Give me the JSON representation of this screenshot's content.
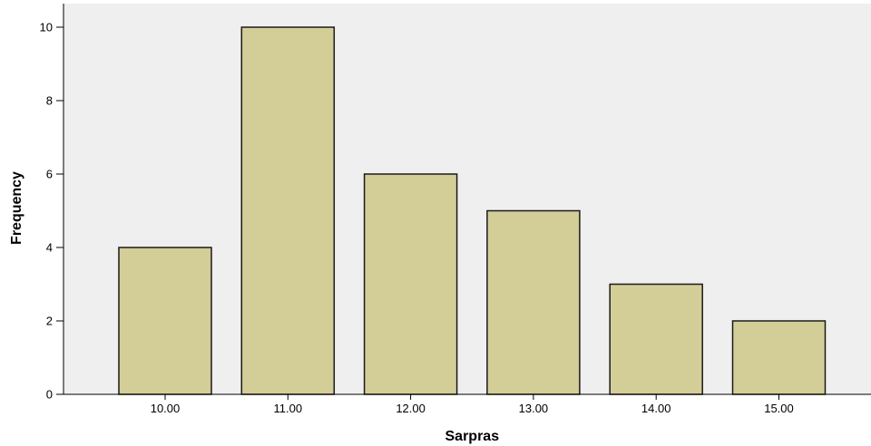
{
  "chart_data": {
    "type": "bar",
    "categories": [
      "10.00",
      "11.00",
      "12.00",
      "13.00",
      "14.00",
      "15.00"
    ],
    "values": [
      4,
      10,
      6,
      5,
      3,
      2
    ],
    "xlabel": "Sarpras",
    "ylabel": "Frequency",
    "ylim": [
      0,
      10
    ],
    "yticks": [
      "0",
      "2",
      "4",
      "6",
      "8",
      "10"
    ],
    "grid": false,
    "colors": {
      "plot_background": "#efefef",
      "bar_fill": "#d3ce97",
      "bar_stroke": "#1a1a1a",
      "axis": "#000000"
    }
  }
}
